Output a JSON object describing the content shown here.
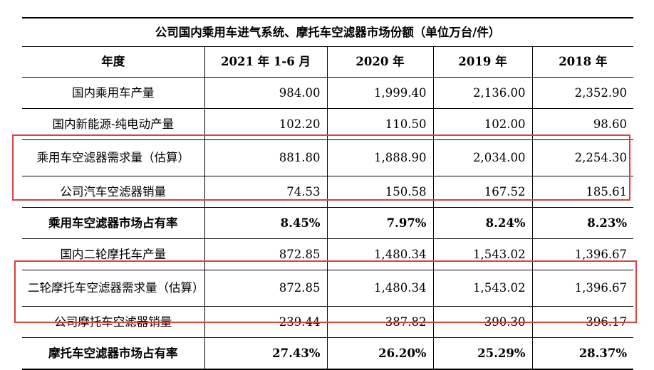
{
  "table": {
    "title": "公司国内乘用车进气系统、摩托车空滤器市场份额（单位万台/件）",
    "headers": [
      "年度",
      "2021 年 1-6 月",
      "2020 年",
      "2019 年",
      "2018 年"
    ],
    "rows": [
      {
        "label": "国内乘用车产量",
        "values": [
          "984.00",
          "1,999.40",
          "2,136.00",
          "2,352.90"
        ]
      },
      {
        "label": "国内新能源-纯电动产量",
        "values": [
          "102.20",
          "110.50",
          "102.00",
          "98.60"
        ]
      },
      {
        "label": "乘用车空滤器需求量（估算）",
        "values": [
          "881.80",
          "1,888.90",
          "2,034.00",
          "2,254.30"
        ]
      },
      {
        "label": "公司汽车空滤器销量",
        "values": [
          "74.53",
          "150.58",
          "167.52",
          "185.61"
        ]
      },
      {
        "label": "乘用车空滤器市场占有率",
        "values": [
          "8.45%",
          "7.97%",
          "8.24%",
          "8.23%"
        ]
      },
      {
        "label": "国内二轮摩托车产量",
        "values": [
          "872.85",
          "1,480.34",
          "1,543.02",
          "1,396.67"
        ]
      },
      {
        "label": "二轮摩托车空滤器需求量（估算）",
        "values": [
          "872.85",
          "1,480.34",
          "1,543.02",
          "1,396.67"
        ]
      },
      {
        "label": "公司摩托车空滤器销量",
        "values": [
          "239.44",
          "387.82",
          "390.30",
          "396.17"
        ]
      },
      {
        "label": "摩托车空滤器市场占有率",
        "values": [
          "27.43%",
          "26.20%",
          "25.29%",
          "28.37%"
        ]
      }
    ]
  },
  "colors": {
    "highlight": "#d7423c",
    "text": "#000000",
    "background": "#ffffff"
  }
}
